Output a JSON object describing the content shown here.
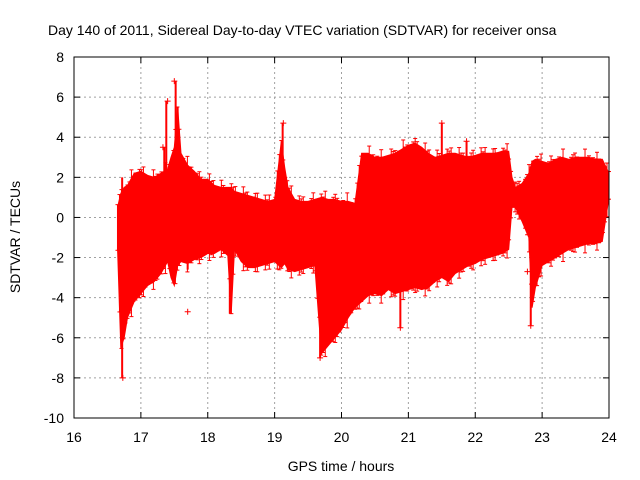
{
  "chart_data": {
    "type": "scatter",
    "title": "Day 140 of 2011, Sidereal Day-to-day VTEC variation (SDTVAR) for receiver onsa",
    "xlabel": "GPS time / hours",
    "ylabel": "SDTVAR / TECUs",
    "xlim": [
      16,
      24
    ],
    "ylim": [
      -10,
      8
    ],
    "xticks": [
      16,
      17,
      18,
      19,
      20,
      21,
      22,
      23,
      24
    ],
    "yticks": [
      -10,
      -8,
      -6,
      -4,
      -2,
      0,
      2,
      4,
      6,
      8
    ],
    "xtick_labels": [
      "16",
      "17",
      "18",
      "19",
      "20",
      "21",
      "22",
      "23",
      "24"
    ],
    "ytick_labels": [
      "-10",
      "-8",
      "-6",
      "-4",
      "-2",
      "0",
      "2",
      "4",
      "6",
      "8"
    ],
    "grid": true,
    "series": [
      {
        "name": "SDTVAR",
        "color": "#ff0000",
        "envelope": {
          "x": [
            16.65,
            16.7,
            16.75,
            16.8,
            16.9,
            17.0,
            17.1,
            17.2,
            17.3,
            17.4,
            17.45,
            17.5,
            17.55,
            17.6,
            17.7,
            17.8,
            17.9,
            18.0,
            18.1,
            18.2,
            18.3,
            18.35,
            18.4,
            18.5,
            18.6,
            18.7,
            18.8,
            18.9,
            19.0,
            19.1,
            19.15,
            19.2,
            19.3,
            19.4,
            19.5,
            19.6,
            19.7,
            19.8,
            19.9,
            20.0,
            20.1,
            20.2,
            20.3,
            20.4,
            20.5,
            20.6,
            20.7,
            20.8,
            20.9,
            21.0,
            21.1,
            21.2,
            21.3,
            21.4,
            21.5,
            21.6,
            21.7,
            21.8,
            21.9,
            22.0,
            22.1,
            22.2,
            22.3,
            22.4,
            22.5,
            22.55,
            22.6,
            22.7,
            22.8,
            22.85,
            22.9,
            23.0,
            23.1,
            23.2,
            23.3,
            23.4,
            23.5,
            23.6,
            23.7,
            23.8,
            23.9,
            24.0
          ],
          "upper": [
            0.5,
            1.2,
            1.5,
            1.6,
            2.2,
            2.3,
            2.1,
            2.0,
            2.2,
            2.4,
            3.0,
            3.5,
            5.5,
            3.2,
            2.6,
            2.3,
            1.9,
            1.9,
            1.6,
            1.5,
            1.5,
            1.5,
            1.3,
            1.2,
            1.1,
            1.0,
            0.9,
            0.8,
            0.9,
            3.8,
            2.5,
            1.5,
            0.9,
            0.8,
            0.8,
            0.9,
            1.0,
            0.9,
            0.9,
            0.8,
            0.8,
            0.7,
            3.2,
            3.2,
            3.0,
            3.0,
            3.1,
            3.2,
            3.4,
            3.6,
            3.7,
            3.5,
            3.2,
            3.0,
            3.1,
            3.2,
            3.2,
            3.1,
            3.0,
            3.1,
            3.2,
            3.2,
            3.2,
            3.3,
            3.3,
            2.0,
            1.5,
            1.7,
            2.2,
            2.8,
            2.9,
            2.8,
            2.7,
            2.9,
            3.0,
            2.9,
            3.0,
            3.0,
            3.0,
            2.9,
            2.9,
            2.2
          ],
          "lower": [
            -1.5,
            -6.5,
            -6.0,
            -5.0,
            -4.2,
            -3.8,
            -3.4,
            -3.2,
            -2.8,
            -2.2,
            -3.0,
            -3.4,
            -2.4,
            -2.2,
            -2.3,
            -2.1,
            -2.0,
            -1.8,
            -1.8,
            -1.6,
            -1.9,
            -4.8,
            -1.6,
            -2.2,
            -2.5,
            -2.5,
            -2.4,
            -2.3,
            -2.2,
            -2.5,
            -2.3,
            -2.6,
            -2.7,
            -2.6,
            -2.5,
            -2.4,
            -6.8,
            -6.4,
            -6.0,
            -5.6,
            -5.0,
            -4.5,
            -4.2,
            -3.9,
            -3.8,
            -3.9,
            -3.6,
            -3.8,
            -3.7,
            -3.6,
            -3.5,
            -3.6,
            -3.5,
            -3.2,
            -3.0,
            -3.2,
            -2.8,
            -2.6,
            -2.4,
            -2.3,
            -2.1,
            -2.0,
            -1.9,
            -1.8,
            -1.6,
            0.5,
            0.5,
            -0.2,
            -1.0,
            -4.5,
            -3.5,
            -2.4,
            -2.2,
            -2.0,
            -1.8,
            -1.6,
            -1.5,
            -1.4,
            -1.3,
            -1.3,
            -1.2,
            1.0
          ]
        },
        "spikes": [
          {
            "x": 16.72,
            "low": -8.0,
            "high": 2.0
          },
          {
            "x": 17.35,
            "low": 1.0,
            "high": 3.5
          },
          {
            "x": 17.38,
            "low": 1.5,
            "high": 5.8
          },
          {
            "x": 17.52,
            "low": 2.0,
            "high": 6.8
          },
          {
            "x": 17.55,
            "low": 1.5,
            "high": 5.5
          },
          {
            "x": 17.7,
            "low": -2.6,
            "high": 1.5
          },
          {
            "x": 18.33,
            "low": -4.8,
            "high": 1.5
          },
          {
            "x": 19.12,
            "low": 1.0,
            "high": 4.7
          },
          {
            "x": 19.68,
            "low": -7.0,
            "high": -2.0
          },
          {
            "x": 20.88,
            "low": -5.5,
            "high": -2.0
          },
          {
            "x": 21.5,
            "low": 2.0,
            "high": 4.7
          },
          {
            "x": 21.87,
            "low": 2.0,
            "high": 3.8
          },
          {
            "x": 22.83,
            "low": -5.4,
            "high": -1.5
          }
        ],
        "points": [
          {
            "x": 16.73,
            "y": -8.0
          },
          {
            "x": 17.33,
            "y": 3.5
          },
          {
            "x": 17.4,
            "y": 5.8
          },
          {
            "x": 17.5,
            "y": 6.8
          },
          {
            "x": 17.7,
            "y": -4.7
          },
          {
            "x": 19.13,
            "y": 4.7
          },
          {
            "x": 19.68,
            "y": -7.0
          },
          {
            "x": 20.88,
            "y": -5.5
          },
          {
            "x": 21.5,
            "y": 4.7
          },
          {
            "x": 21.87,
            "y": 3.8
          },
          {
            "x": 22.78,
            "y": -2.7
          },
          {
            "x": 22.83,
            "y": -5.4
          }
        ]
      }
    ]
  }
}
